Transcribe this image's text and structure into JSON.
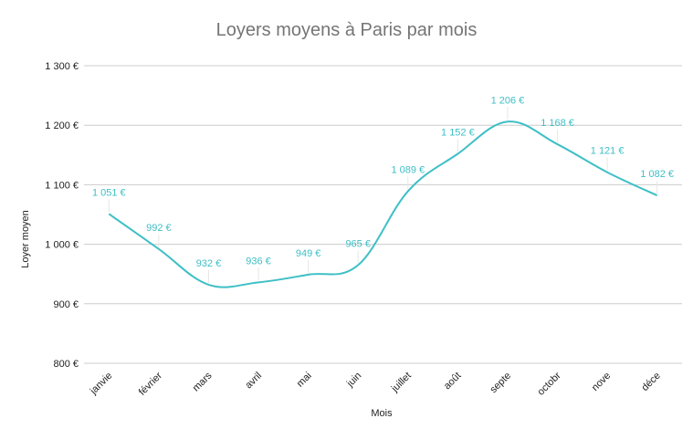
{
  "chart_data": {
    "type": "line",
    "title": "Loyers moyens à Paris par mois",
    "xlabel": "Mois",
    "ylabel": "Loyer moyen",
    "categories": [
      "janvie",
      "février",
      "mars",
      "avril",
      "mai",
      "juin",
      "juillet",
      "août",
      "septe",
      "octobr",
      "nove",
      "déce"
    ],
    "series": [
      {
        "values": [
          1051,
          992,
          932,
          936,
          949,
          965,
          1089,
          1152,
          1206,
          1168,
          1121,
          1082
        ],
        "labels": [
          "1 051 €",
          "992 €",
          "932 €",
          "936 €",
          "949 €",
          "965 €",
          "1 089 €",
          "1 152 €",
          "1 206 €",
          "1 168 €",
          "1 121 €",
          "1 082 €"
        ],
        "color": "#3ebfc6"
      }
    ],
    "ylim": [
      800,
      1300
    ],
    "yticks": [
      800,
      900,
      1000,
      1100,
      1200,
      1300
    ],
    "ytick_labels": [
      "800 €",
      "900 €",
      "1 000 €",
      "1 100 €",
      "1 200 €",
      "1 300 €"
    ],
    "grid": true,
    "smooth": true,
    "gridline_color": "#cccccc",
    "legend": "none"
  }
}
